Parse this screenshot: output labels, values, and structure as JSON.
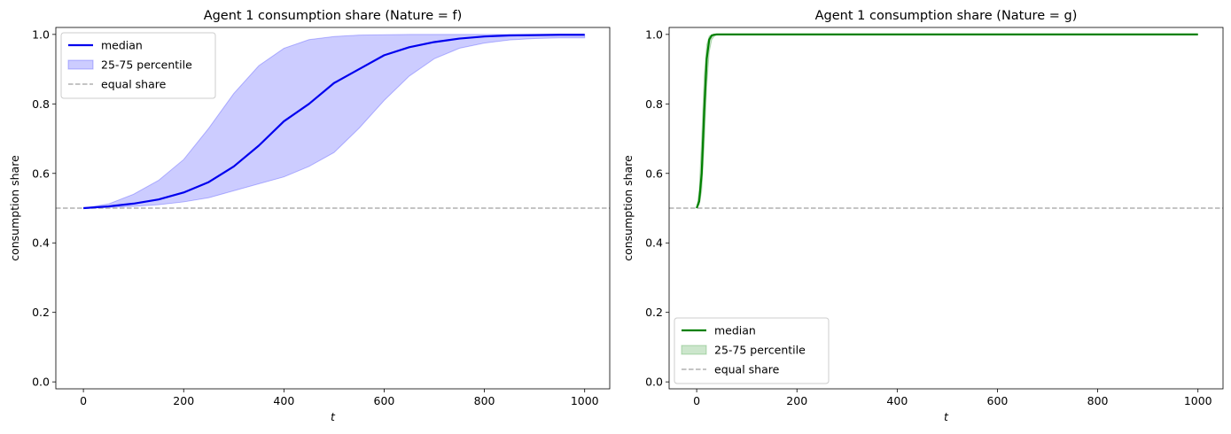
{
  "chart_data": [
    {
      "type": "line",
      "title": "Agent 1 consumption share (Nature = f)",
      "xlabel": "t",
      "ylabel": "consumption share",
      "xlim": [
        -55,
        1050
      ],
      "ylim": [
        -0.02,
        1.02
      ],
      "xticks": [
        0,
        200,
        400,
        600,
        800,
        1000
      ],
      "yticks": [
        0.0,
        0.2,
        0.4,
        0.6,
        0.8,
        1.0
      ],
      "ytick_labels": [
        "0.0",
        "0.2",
        "0.4",
        "0.6",
        "0.8",
        "1.0"
      ],
      "legend_position": "upper-left",
      "colors": {
        "median": "#0000ee",
        "band": "#0000ff",
        "equal": "#b0b0b0"
      },
      "x": [
        0,
        50,
        100,
        150,
        200,
        250,
        300,
        350,
        400,
        450,
        500,
        550,
        600,
        650,
        700,
        750,
        800,
        850,
        900,
        950,
        1000
      ],
      "series": [
        {
          "name": "median",
          "values": [
            0.5,
            0.505,
            0.513,
            0.525,
            0.545,
            0.575,
            0.62,
            0.68,
            0.75,
            0.8,
            0.86,
            0.9,
            0.94,
            0.963,
            0.978,
            0.988,
            0.994,
            0.997,
            0.998,
            0.999,
            0.999
          ]
        },
        {
          "name": "25-75 percentile",
          "lower": [
            0.5,
            0.502,
            0.505,
            0.51,
            0.518,
            0.53,
            0.55,
            0.57,
            0.59,
            0.62,
            0.66,
            0.73,
            0.81,
            0.88,
            0.93,
            0.96,
            0.975,
            0.984,
            0.988,
            0.99,
            0.99
          ],
          "upper": [
            0.5,
            0.512,
            0.54,
            0.58,
            0.64,
            0.73,
            0.83,
            0.91,
            0.96,
            0.985,
            0.994,
            0.998,
            0.999,
            1.0,
            1.0,
            1.0,
            1.0,
            1.0,
            1.0,
            1.0,
            1.0
          ]
        },
        {
          "name": "equal share",
          "value": 0.5
        }
      ]
    },
    {
      "type": "line",
      "title": "Agent 1 consumption share (Nature = g)",
      "xlabel": "t",
      "ylabel": "consumption share",
      "xlim": [
        -55,
        1050
      ],
      "ylim": [
        -0.02,
        1.02
      ],
      "xticks": [
        0,
        200,
        400,
        600,
        800,
        1000
      ],
      "yticks": [
        0.0,
        0.2,
        0.4,
        0.6,
        0.8,
        1.0
      ],
      "ytick_labels": [
        "0.0",
        "0.2",
        "0.4",
        "0.6",
        "0.8",
        "1.0"
      ],
      "legend_position": "lower-left",
      "colors": {
        "median": "#008000",
        "band": "#008000",
        "equal": "#b0b0b0"
      },
      "x": [
        0,
        5,
        10,
        15,
        20,
        25,
        30,
        35,
        40,
        50,
        100,
        200,
        400,
        600,
        800,
        1000
      ],
      "series": [
        {
          "name": "median",
          "values": [
            0.5,
            0.52,
            0.6,
            0.78,
            0.93,
            0.985,
            0.997,
            0.999,
            1.0,
            1.0,
            1.0,
            1.0,
            1.0,
            1.0,
            1.0,
            1.0
          ]
        },
        {
          "name": "25-75 percentile",
          "lower": [
            0.5,
            0.51,
            0.55,
            0.68,
            0.85,
            0.95,
            0.985,
            0.995,
            0.999,
            1.0,
            1.0,
            1.0,
            1.0,
            1.0,
            1.0,
            1.0
          ],
          "upper": [
            0.5,
            0.55,
            0.7,
            0.88,
            0.97,
            0.995,
            0.999,
            1.0,
            1.0,
            1.0,
            1.0,
            1.0,
            1.0,
            1.0,
            1.0,
            1.0
          ]
        },
        {
          "name": "equal share",
          "value": 0.5
        }
      ]
    }
  ]
}
